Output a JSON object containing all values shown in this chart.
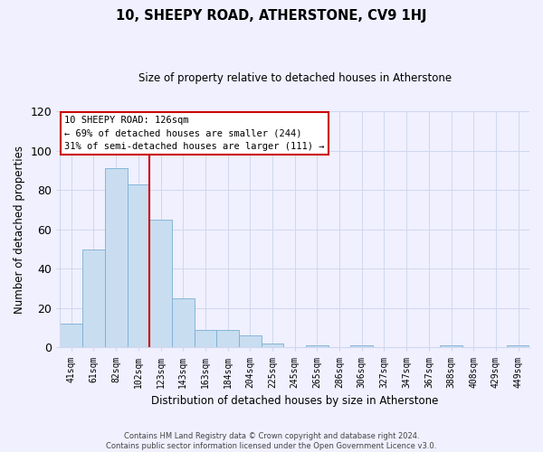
{
  "title": "10, SHEEPY ROAD, ATHERSTONE, CV9 1HJ",
  "subtitle": "Size of property relative to detached houses in Atherstone",
  "xlabel": "Distribution of detached houses by size in Atherstone",
  "ylabel": "Number of detached properties",
  "bin_labels": [
    "41sqm",
    "61sqm",
    "82sqm",
    "102sqm",
    "123sqm",
    "143sqm",
    "163sqm",
    "184sqm",
    "204sqm",
    "225sqm",
    "245sqm",
    "265sqm",
    "286sqm",
    "306sqm",
    "327sqm",
    "347sqm",
    "367sqm",
    "388sqm",
    "408sqm",
    "429sqm",
    "449sqm"
  ],
  "bar_heights": [
    12,
    50,
    91,
    83,
    65,
    25,
    9,
    9,
    6,
    2,
    0,
    1,
    0,
    1,
    0,
    0,
    0,
    1,
    0,
    0,
    1
  ],
  "bar_color": "#c8ddf0",
  "bar_edge_color": "#7aafd4",
  "marker_line_color": "#cc0000",
  "marker_line_index": 4,
  "ylim": [
    0,
    120
  ],
  "yticks": [
    0,
    20,
    40,
    60,
    80,
    100,
    120
  ],
  "annotation_title": "10 SHEEPY ROAD: 126sqm",
  "annotation_line1": "← 69% of detached houses are smaller (244)",
  "annotation_line2": "31% of semi-detached houses are larger (111) →",
  "footer_line1": "Contains HM Land Registry data © Crown copyright and database right 2024.",
  "footer_line2": "Contains public sector information licensed under the Open Government Licence v3.0.",
  "background_color": "#f0f0ff",
  "grid_color": "#d0d8ee"
}
